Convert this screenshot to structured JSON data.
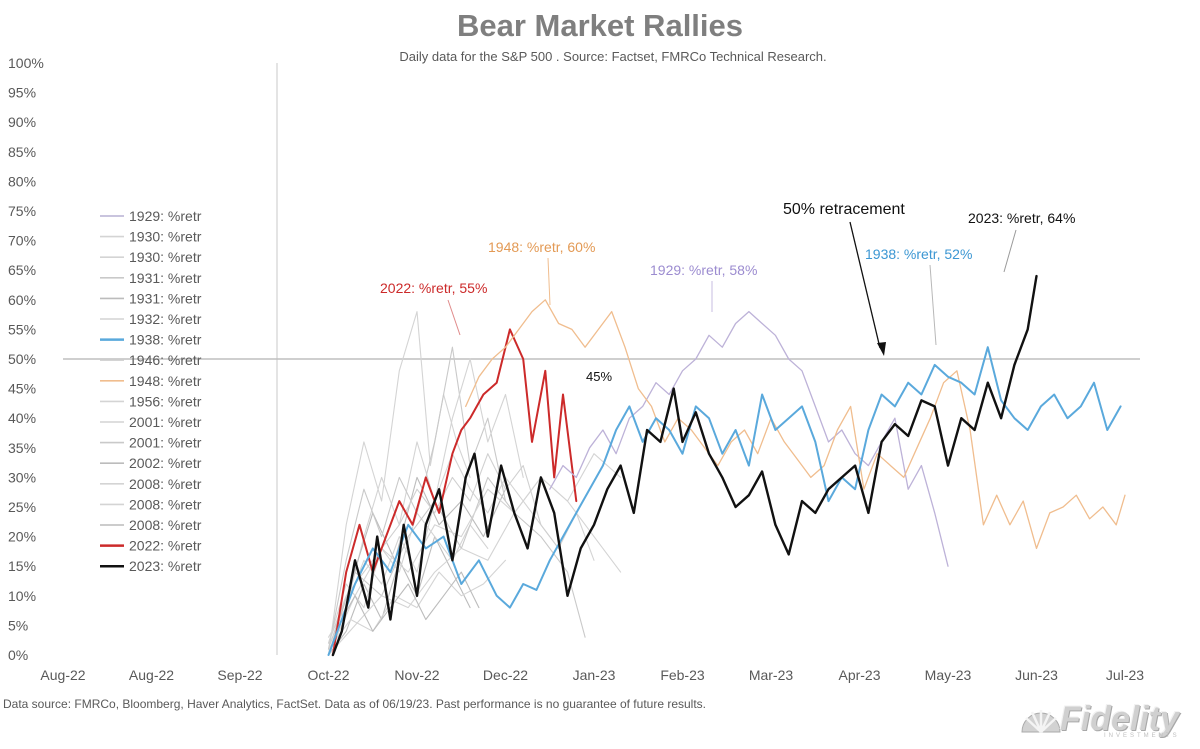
{
  "header": {
    "title": "Bear Market Rallies",
    "subtitle": "Daily data for the S&P 500 .  Source: Factset, FMRCo Technical Research."
  },
  "footer": {
    "source": "Data source: FMRCo, Bloomberg, Haver Analytics, FactSet. Data as of 06/19/23. Past performance is no guarantee of future results."
  },
  "logo": {
    "text": "Fidelity",
    "sub": "INVESTMENTS"
  },
  "chart_data": {
    "type": "line",
    "title": "Bear Market Rallies",
    "subtitle": "Daily data for the S&P 500 .  Source: Factset, FMRCo Technical Research.",
    "xlabel": "",
    "ylabel": "",
    "x_tick_labels": [
      "Aug-22",
      "Aug-22",
      "Sep-22",
      "Oct-22",
      "Nov-22",
      "Dec-22",
      "Jan-23",
      "Feb-23",
      "Mar-23",
      "Apr-23",
      "May-23",
      "Jun-23",
      "Jul-23"
    ],
    "y_tick_labels": [
      "0%",
      "5%",
      "10%",
      "15%",
      "20%",
      "25%",
      "30%",
      "35%",
      "40%",
      "45%",
      "50%",
      "55%",
      "60%",
      "65%",
      "70%",
      "75%",
      "80%",
      "85%",
      "90%",
      "95%",
      "100%"
    ],
    "ylim": [
      0,
      100
    ],
    "x_domain_index": [
      0,
      12
    ],
    "grid": false,
    "legend_position": "left",
    "reference_line": {
      "y": 50,
      "label": "50% retracement"
    },
    "colors": {
      "grey_series": "#d0d0d0",
      "purple_1929": "#bdb2d8",
      "orange_1948": "#f0bd8e",
      "blue_1938": "#5aa9dc",
      "red_2022": "#cc2a2a",
      "black_2023": "#111111",
      "ref_line": "#bfbfbf",
      "axis_text": "#595959"
    },
    "legend": [
      {
        "name": "1929: %retr",
        "color": "#b7b0d3"
      },
      {
        "name": "1930: %retr",
        "color": "#d4d4d4"
      },
      {
        "name": "1930: %retr",
        "color": "#d4d4d4"
      },
      {
        "name": "1931: %retr",
        "color": "#c9c9c9"
      },
      {
        "name": "1931: %retr",
        "color": "#bcbcbc"
      },
      {
        "name": "1932: %retr",
        "color": "#d4d4d4"
      },
      {
        "name": "1938: %retr",
        "color": "#5aa9dc"
      },
      {
        "name": "1946: %retr",
        "color": "#d4d4d4"
      },
      {
        "name": "1948: %retr",
        "color": "#f0bd8e"
      },
      {
        "name": "1956: %retr",
        "color": "#d4d4d4"
      },
      {
        "name": "2001: %retr",
        "color": "#d4d4d4"
      },
      {
        "name": "2001: %retr",
        "color": "#c9c9c9"
      },
      {
        "name": "2002: %retr",
        "color": "#bcbcbc"
      },
      {
        "name": "2008: %retr",
        "color": "#d4d4d4"
      },
      {
        "name": "2008: %retr",
        "color": "#d4d4d4"
      },
      {
        "name": "2008: %retr",
        "color": "#bcbcbc"
      },
      {
        "name": "2022: %retr",
        "color": "#cc2a2a"
      },
      {
        "name": "2023: %retr",
        "color": "#111111"
      }
    ],
    "annotations": [
      {
        "text": "2022: %retr, 55%",
        "color": "#cc2a2a"
      },
      {
        "text": "1948: %retr, 60%",
        "color": "#e39a55"
      },
      {
        "text": "1929: %retr, 58%",
        "color": "#9c8cd0"
      },
      {
        "text": "45%",
        "color": "#111111"
      },
      {
        "text": "50% retracement",
        "color": "#111111"
      },
      {
        "text": "1938: %retr, 52%",
        "color": "#3c97d3"
      },
      {
        "text": "2023: %retr, 64%",
        "color": "#111111"
      }
    ],
    "series": [
      {
        "name": "2023: %retr",
        "color": "#111111",
        "width": 2.4,
        "x": [
          3.05,
          3.15,
          3.3,
          3.45,
          3.55,
          3.7,
          3.85,
          4.0,
          4.1,
          4.25,
          4.4,
          4.55,
          4.65,
          4.8,
          4.95,
          5.1,
          5.25,
          5.4,
          5.55,
          5.7,
          5.85,
          6.0,
          6.15,
          6.3,
          6.45,
          6.6,
          6.75,
          6.9,
          7.0,
          7.15,
          7.3,
          7.45,
          7.6,
          7.75,
          7.9,
          8.05,
          8.2,
          8.35,
          8.5,
          8.65,
          8.8,
          8.95,
          9.1,
          9.25,
          9.4,
          9.55,
          9.7,
          9.85,
          10.0,
          10.15,
          10.3,
          10.45,
          10.6,
          10.75,
          10.9,
          11.0
        ],
        "values": [
          0,
          4,
          16,
          8,
          20,
          6,
          22,
          10,
          22,
          28,
          16,
          30,
          34,
          20,
          32,
          24,
          18,
          30,
          24,
          10,
          18,
          22,
          28,
          32,
          24,
          38,
          36,
          45,
          36,
          41,
          34,
          30,
          25,
          27,
          31,
          22,
          17,
          26,
          24,
          28,
          30,
          32,
          24,
          36,
          39,
          37,
          43,
          42,
          32,
          40,
          38,
          46,
          40,
          49,
          55,
          64
        ]
      },
      {
        "name": "1938: %retr",
        "color": "#5aa9dc",
        "width": 2.0,
        "x": [
          3.0,
          3.15,
          3.3,
          3.5,
          3.7,
          3.9,
          4.1,
          4.3,
          4.5,
          4.7,
          4.9,
          5.05,
          5.2,
          5.35,
          5.5,
          5.65,
          5.8,
          5.95,
          6.1,
          6.25,
          6.4,
          6.55,
          6.7,
          6.85,
          7.0,
          7.15,
          7.3,
          7.45,
          7.6,
          7.75,
          7.9,
          8.05,
          8.2,
          8.35,
          8.5,
          8.65,
          8.8,
          8.95,
          9.1,
          9.25,
          9.4,
          9.55,
          9.7,
          9.85,
          10.0,
          10.15,
          10.3,
          10.45,
          10.6,
          10.75,
          10.9,
          11.05,
          11.2,
          11.35,
          11.5,
          11.65,
          11.8,
          11.95
        ],
        "values": [
          0,
          6,
          12,
          18,
          14,
          22,
          18,
          20,
          12,
          16,
          10,
          8,
          12,
          11,
          16,
          20,
          24,
          28,
          32,
          38,
          42,
          36,
          40,
          38,
          34,
          42,
          40,
          34,
          38,
          32,
          44,
          38,
          40,
          42,
          36,
          26,
          30,
          28,
          38,
          44,
          42,
          46,
          44,
          49,
          47,
          46,
          44,
          52,
          43,
          40,
          38,
          42,
          44,
          40,
          42,
          46,
          38,
          42
        ]
      },
      {
        "name": "1948: %retr",
        "color": "#f0bd8e",
        "width": 1.3,
        "x": [
          4.55,
          4.7,
          4.85,
          5.0,
          5.15,
          5.3,
          5.45,
          5.6,
          5.75,
          5.9,
          6.05,
          6.2,
          6.35,
          6.5,
          6.65,
          6.8,
          6.95,
          7.1,
          7.25,
          7.4,
          7.55,
          7.7,
          7.85,
          8.0,
          8.15,
          8.3,
          8.45,
          8.6,
          8.75,
          8.9,
          9.05,
          9.2,
          9.35,
          9.5,
          9.65,
          9.8,
          9.95,
          10.1,
          10.25,
          10.4,
          10.55,
          10.7,
          10.85,
          11.0,
          11.15,
          11.3,
          11.45,
          11.6,
          11.75,
          11.9,
          12.0
        ],
        "values": [
          42,
          47,
          50,
          52,
          55,
          58,
          60,
          56,
          55,
          52,
          55,
          58,
          52,
          45,
          42,
          36,
          40,
          38,
          35,
          32,
          36,
          38,
          34,
          40,
          36,
          33,
          30,
          32,
          38,
          42,
          28,
          34,
          32,
          30,
          35,
          40,
          46,
          48,
          38,
          22,
          27,
          22,
          26,
          18,
          24,
          25,
          27,
          23,
          25,
          22,
          27
        ]
      },
      {
        "name": "1929: %retr",
        "color": "#bdb2d8",
        "width": 1.3,
        "x": [
          5.5,
          5.65,
          5.8,
          5.95,
          6.1,
          6.25,
          6.4,
          6.55,
          6.7,
          6.85,
          7.0,
          7.15,
          7.3,
          7.45,
          7.6,
          7.75,
          7.9,
          8.05,
          8.2,
          8.35,
          8.5,
          8.65,
          8.8,
          8.95,
          9.1,
          9.25,
          9.4,
          9.55,
          9.7,
          9.85,
          10.0
        ],
        "values": [
          28,
          32,
          30,
          35,
          38,
          34,
          40,
          42,
          46,
          44,
          48,
          50,
          54,
          52,
          56,
          58,
          56,
          54,
          50,
          48,
          42,
          36,
          38,
          34,
          32,
          36,
          40,
          28,
          32,
          24,
          15
        ]
      },
      {
        "name": "2022: %retr",
        "color": "#cc2a2a",
        "width": 2.0,
        "x": [
          3.05,
          3.2,
          3.35,
          3.5,
          3.65,
          3.8,
          3.95,
          4.1,
          4.25,
          4.4,
          4.5,
          4.6,
          4.75,
          4.9,
          5.05,
          5.2,
          5.3,
          5.45,
          5.55,
          5.65,
          5.8
        ],
        "values": [
          0,
          14,
          22,
          14,
          20,
          26,
          22,
          30,
          24,
          34,
          38,
          40,
          44,
          46,
          55,
          50,
          36,
          48,
          30,
          44,
          26
        ]
      },
      {
        "name": "1930: %retr",
        "color": "#d0d0d0",
        "width": 1.1,
        "x": [
          3.0,
          3.2,
          3.4,
          3.6,
          3.8,
          4.0,
          4.2,
          4.4,
          4.6,
          4.8,
          5.0,
          5.2,
          5.4,
          5.6
        ],
        "values": [
          2,
          10,
          14,
          18,
          22,
          28,
          24,
          30,
          26,
          34,
          28,
          32,
          22,
          18
        ]
      },
      {
        "name": "1930: %retr",
        "color": "#d4d4d4",
        "width": 1.1,
        "x": [
          3.0,
          3.2,
          3.4,
          3.6,
          3.8,
          4.0,
          4.2,
          4.4,
          4.6,
          4.8,
          5.0,
          5.2
        ],
        "values": [
          3,
          8,
          16,
          12,
          20,
          14,
          26,
          40,
          50,
          36,
          44,
          30
        ]
      },
      {
        "name": "1931: %retr",
        "color": "#c9c9c9",
        "width": 1.1,
        "x": [
          3.0,
          3.2,
          3.4,
          3.6,
          3.8,
          4.0,
          4.2,
          4.4,
          4.6,
          4.8,
          5.0
        ],
        "values": [
          1,
          16,
          28,
          20,
          30,
          24,
          36,
          52,
          32,
          40,
          26
        ]
      },
      {
        "name": "1931: %retr",
        "color": "#bcbcbc",
        "width": 1.1,
        "x": [
          3.0,
          3.15,
          3.3,
          3.5,
          3.7,
          3.9,
          4.1,
          4.3,
          4.5,
          4.7
        ],
        "values": [
          0,
          6,
          10,
          4,
          8,
          12,
          6,
          10,
          14,
          8
        ]
      },
      {
        "name": "1932: %retr",
        "color": "#d4d4d4",
        "width": 1.1,
        "x": [
          3.0,
          3.2,
          3.4,
          3.6,
          3.8,
          4.0,
          4.15,
          4.3,
          4.45,
          4.6
        ],
        "values": [
          0,
          22,
          36,
          26,
          48,
          58,
          32,
          44,
          36,
          30
        ]
      },
      {
        "name": "1946: %retr",
        "color": "#d4d4d4",
        "width": 1.1,
        "x": [
          3.0,
          3.25,
          3.5,
          3.75,
          4.0,
          4.25,
          4.5,
          4.75,
          5.0
        ],
        "values": [
          1,
          6,
          4,
          10,
          8,
          14,
          10,
          12,
          16
        ]
      },
      {
        "name": "1956: %retr",
        "color": "#d4d4d4",
        "width": 1.1,
        "x": [
          3.0,
          3.3,
          3.6,
          3.9,
          4.2,
          4.5,
          4.8,
          5.1,
          5.4,
          5.7,
          6.0,
          6.3
        ],
        "values": [
          0,
          5,
          10,
          8,
          14,
          18,
          16,
          24,
          30,
          26,
          34,
          30
        ]
      },
      {
        "name": "2001: %retr",
        "color": "#d4d4d4",
        "width": 1.1,
        "x": [
          3.0,
          3.3,
          3.6,
          3.9,
          4.2,
          4.5,
          4.8,
          5.1,
          5.4,
          5.7,
          6.0,
          6.3
        ],
        "values": [
          0,
          10,
          18,
          14,
          22,
          20,
          28,
          24,
          30,
          26,
          20,
          14
        ]
      },
      {
        "name": "2001: %retr",
        "color": "#c9c9c9",
        "width": 1.1,
        "x": [
          3.0,
          3.3,
          3.6,
          3.9,
          4.2,
          4.5,
          4.8,
          5.1,
          5.4,
          5.7,
          5.9
        ],
        "values": [
          1,
          14,
          10,
          20,
          26,
          18,
          30,
          24,
          20,
          14,
          3
        ]
      },
      {
        "name": "2002: %retr",
        "color": "#bcbcbc",
        "width": 1.1,
        "x": [
          3.0,
          3.25,
          3.5,
          3.75,
          4.0,
          4.25,
          4.5,
          4.75,
          5.0
        ],
        "values": [
          0,
          12,
          24,
          16,
          30,
          22,
          26,
          20,
          28
        ]
      },
      {
        "name": "2008: %retr",
        "color": "#d4d4d4",
        "width": 1.1,
        "x": [
          3.0,
          3.2,
          3.4,
          3.6,
          3.8,
          4.0,
          4.2,
          4.4,
          4.6,
          4.8,
          5.0,
          5.2,
          5.4,
          5.6,
          5.8,
          6.0
        ],
        "values": [
          0,
          8,
          20,
          30,
          22,
          36,
          26,
          34,
          28,
          24,
          30,
          26,
          22,
          18,
          24,
          16
        ]
      },
      {
        "name": "2008: %retr",
        "color": "#d4d4d4",
        "width": 1.1,
        "x": [
          3.0,
          3.2,
          3.4,
          3.6,
          3.8,
          4.0,
          4.2,
          4.4,
          4.6,
          4.8
        ],
        "values": [
          2,
          12,
          8,
          18,
          14,
          24,
          20,
          16,
          22,
          18
        ]
      },
      {
        "name": "2008: %retr",
        "color": "#bcbcbc",
        "width": 1.1,
        "x": [
          3.0,
          3.2,
          3.4,
          3.6,
          3.8,
          4.0,
          4.2,
          4.4,
          4.6
        ],
        "values": [
          0,
          4,
          12,
          6,
          16,
          10,
          20,
          14,
          8
        ]
      }
    ]
  }
}
